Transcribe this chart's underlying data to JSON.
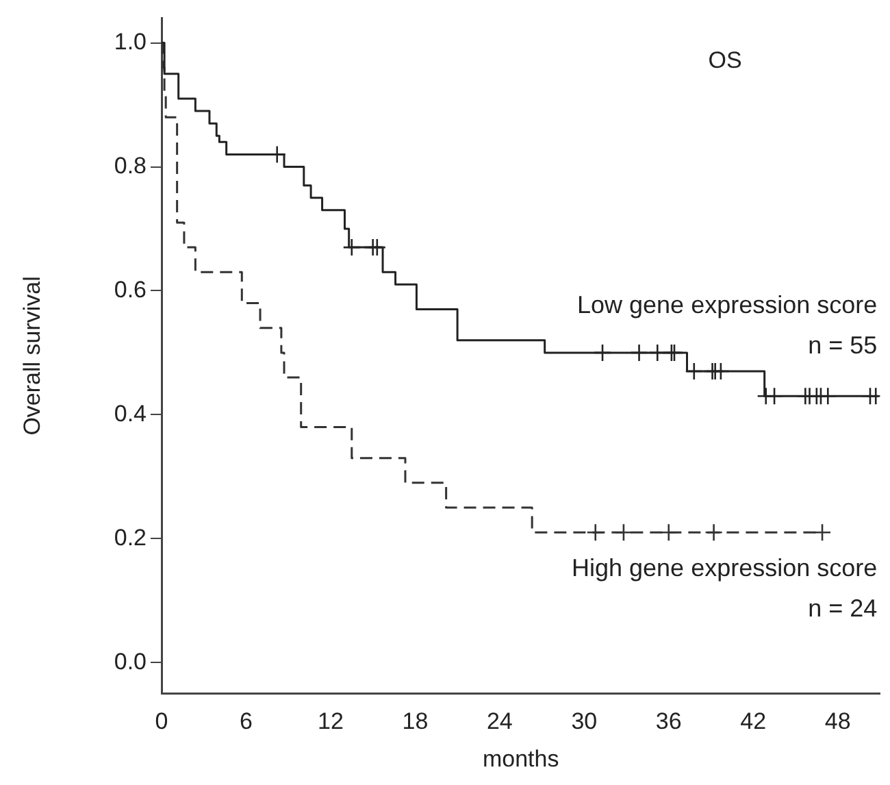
{
  "chart_data": {
    "type": "step",
    "title": "OS",
    "xlabel": "months",
    "ylabel": "Overall survival",
    "xlim": [
      0,
      51
    ],
    "xticks": [
      0,
      6,
      12,
      18,
      24,
      30,
      36,
      42,
      48
    ],
    "ylim": [
      -0.05,
      1.04
    ],
    "yticks": [
      {
        "value": 0,
        "label": "0.0"
      },
      {
        "value": 0.2,
        "label": "0.2"
      },
      {
        "value": 0.4,
        "label": "0.4"
      },
      {
        "value": 0.6,
        "label": "0.6"
      },
      {
        "value": 0.8,
        "label": "0.8"
      },
      {
        "value": 1,
        "label": "1.0"
      }
    ],
    "grid": false,
    "legend": false,
    "annotations": [
      "n = 55",
      "n = 24"
    ],
    "series": [
      {
        "name": "Low gene expression score",
        "color": "#222222",
        "line_style": "solid",
        "marker": "none",
        "x": [
          0,
          0.2,
          1.2,
          2.4,
          3.4,
          3.9,
          4.1,
          4.6,
          8.7,
          10.1,
          10.6,
          11.4,
          13,
          13.3,
          15.7,
          16.6,
          18.1,
          21,
          27.2,
          37.3,
          42.8,
          50.9
        ],
        "values": [
          1,
          0.95,
          0.91,
          0.89,
          0.87,
          0.85,
          0.84,
          0.82,
          0.8,
          0.77,
          0.75,
          0.73,
          0.7,
          0.67,
          0.63,
          0.61,
          0.57,
          0.52,
          0.5,
          0.47,
          0.43,
          0.43
        ]
      },
      {
        "name": "High gene expression score",
        "color": "#333333",
        "line_style": "dashed",
        "marker": "none",
        "x": [
          0,
          0.1,
          0.2,
          0.3,
          1.1,
          1.6,
          2.4,
          5.7,
          7,
          8.5,
          8.7,
          9.9,
          13.5,
          17.3,
          20.2,
          26.3,
          46.9
        ],
        "values": [
          1,
          0.96,
          0.92,
          0.88,
          0.71,
          0.67,
          0.63,
          0.58,
          0.54,
          0.5,
          0.46,
          0.38,
          0.33,
          0.29,
          0.25,
          0.21,
          0.21
        ]
      },
      {
        "type": "scatter",
        "color": "#222222",
        "marker": "cross",
        "x": [
          8.2,
          13.5,
          15,
          15.3,
          31.3,
          33.9,
          35.2,
          36.2,
          36.4,
          37.8,
          39.1,
          39.3,
          39.7,
          42.9,
          43.5,
          45.7,
          46,
          46.5,
          46.8,
          47.3,
          50.3,
          50.7
        ],
        "values": [
          0.82,
          0.67,
          0.67,
          0.67,
          0.5,
          0.5,
          0.5,
          0.5,
          0.5,
          0.47,
          0.47,
          0.47,
          0.47,
          0.43,
          0.43,
          0.43,
          0.43,
          0.43,
          0.43,
          0.43,
          0.43,
          0.43
        ]
      },
      {
        "type": "scatter",
        "color": "#333333",
        "marker": "cross",
        "x": [
          30.8,
          32.8,
          36,
          39.2,
          46.9
        ],
        "values": [
          0.21,
          0.21,
          0.21,
          0.21,
          0.21
        ]
      }
    ]
  }
}
